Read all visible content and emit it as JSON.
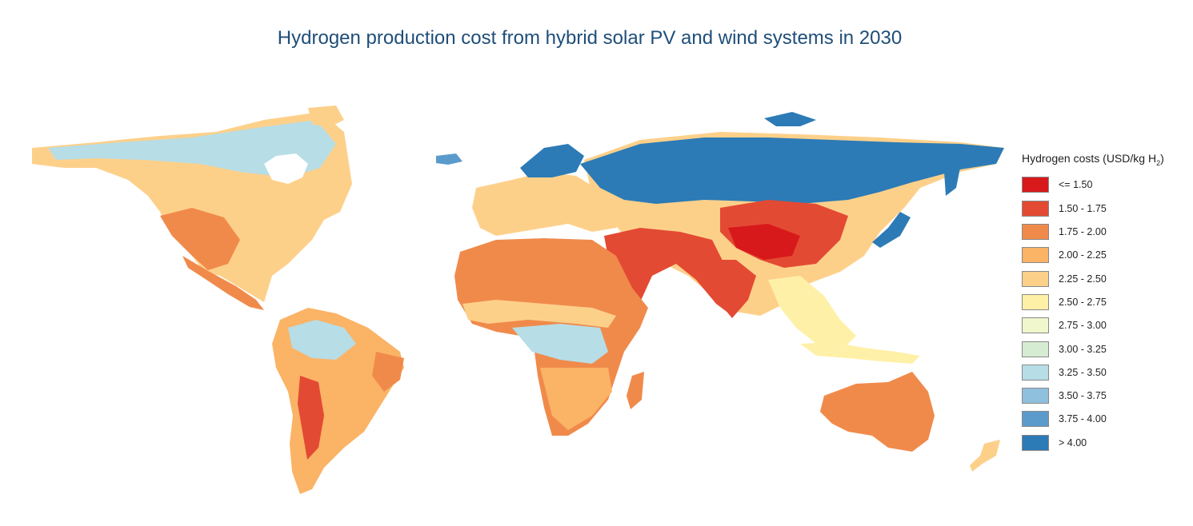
{
  "title": "Hydrogen production cost from hybrid solar PV and wind systems in 2030",
  "legend": {
    "title": "Hydrogen costs (USD/kg H",
    "title_sub": "2",
    "title_end": ")",
    "classes": [
      {
        "label": "<= 1.50",
        "color": "#d7191c"
      },
      {
        "label": "1.50 - 1.75",
        "color": "#e34a33"
      },
      {
        "label": "1.75 - 2.00",
        "color": "#f08a4b"
      },
      {
        "label": "2.00 - 2.25",
        "color": "#fbb366"
      },
      {
        "label": "2.25 - 2.50",
        "color": "#fdd08a"
      },
      {
        "label": "2.50 - 2.75",
        "color": "#fff0a8"
      },
      {
        "label": "2.75 - 3.00",
        "color": "#f1f7cc"
      },
      {
        "label": "3.00 - 3.25",
        "color": "#d6ecd2"
      },
      {
        "label": "3.25 - 3.50",
        "color": "#b7dde6"
      },
      {
        "label": "3.50 - 3.75",
        "color": "#8fc0de"
      },
      {
        "label": "3.75 - 4.00",
        "color": "#5b9bcc"
      },
      {
        "label": "> 4.00",
        "color": "#2c7bb6"
      }
    ]
  }
}
